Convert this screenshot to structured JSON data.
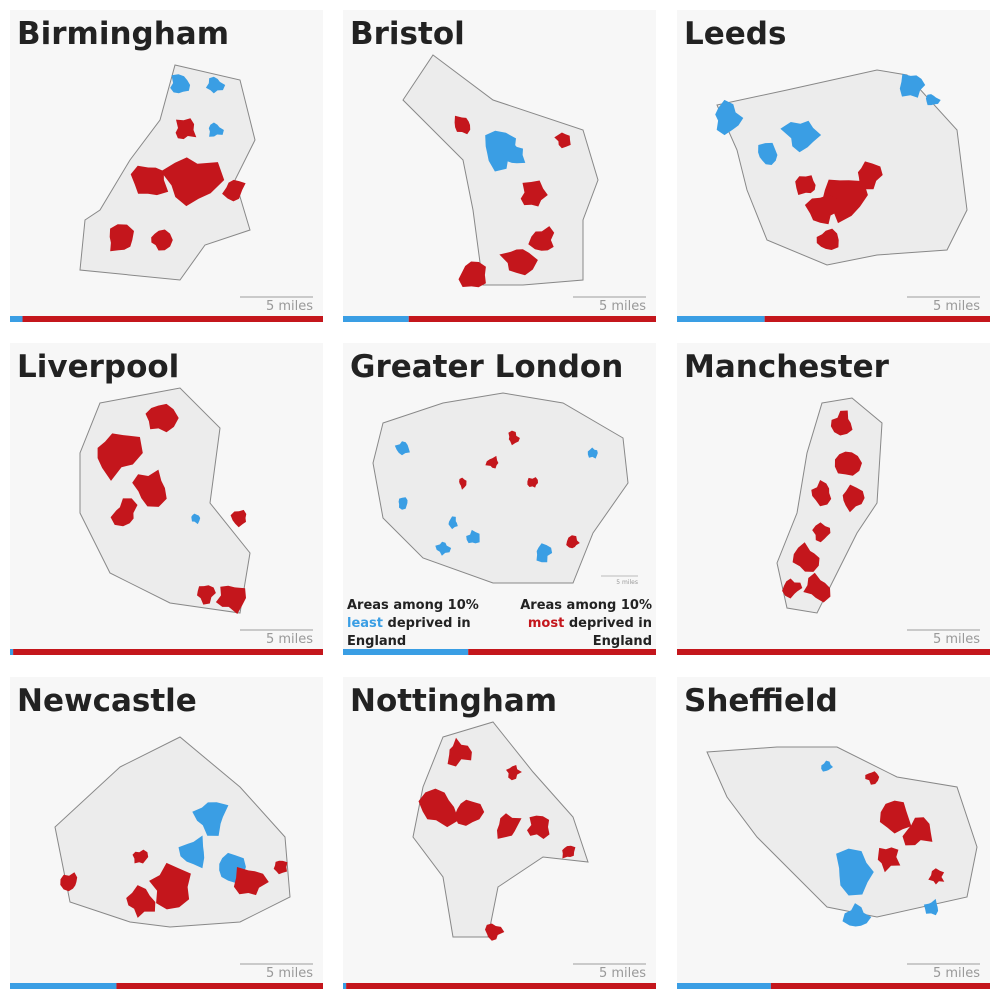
{
  "panels": [
    {
      "title": "Birmingham",
      "scale": "5 miles",
      "least_share": 4
    },
    {
      "title": "Bristol",
      "scale": "5 miles",
      "least_share": 21
    },
    {
      "title": "Leeds",
      "scale": "5 miles",
      "least_share": 28
    },
    {
      "title": "Liverpool",
      "scale": "5 miles",
      "least_share": 1
    },
    {
      "title": "Greater London",
      "scale": "5 miles",
      "least_share": 40
    },
    {
      "title": "Manchester",
      "scale": "5 miles",
      "least_share": 0
    },
    {
      "title": "Newcastle",
      "scale": "5 miles",
      "least_share": 34
    },
    {
      "title": "Nottingham",
      "scale": "5 miles",
      "least_share": 1
    },
    {
      "title": "Sheffield",
      "scale": "5 miles",
      "least_share": 30
    }
  ],
  "legend": {
    "least": {
      "line1": "Areas among 10%",
      "key": "least",
      "rest": "deprived in",
      "line3": "England"
    },
    "most": {
      "line1": "Areas among 10%",
      "key": "most",
      "rest": "deprived in",
      "line3": "England"
    }
  }
}
